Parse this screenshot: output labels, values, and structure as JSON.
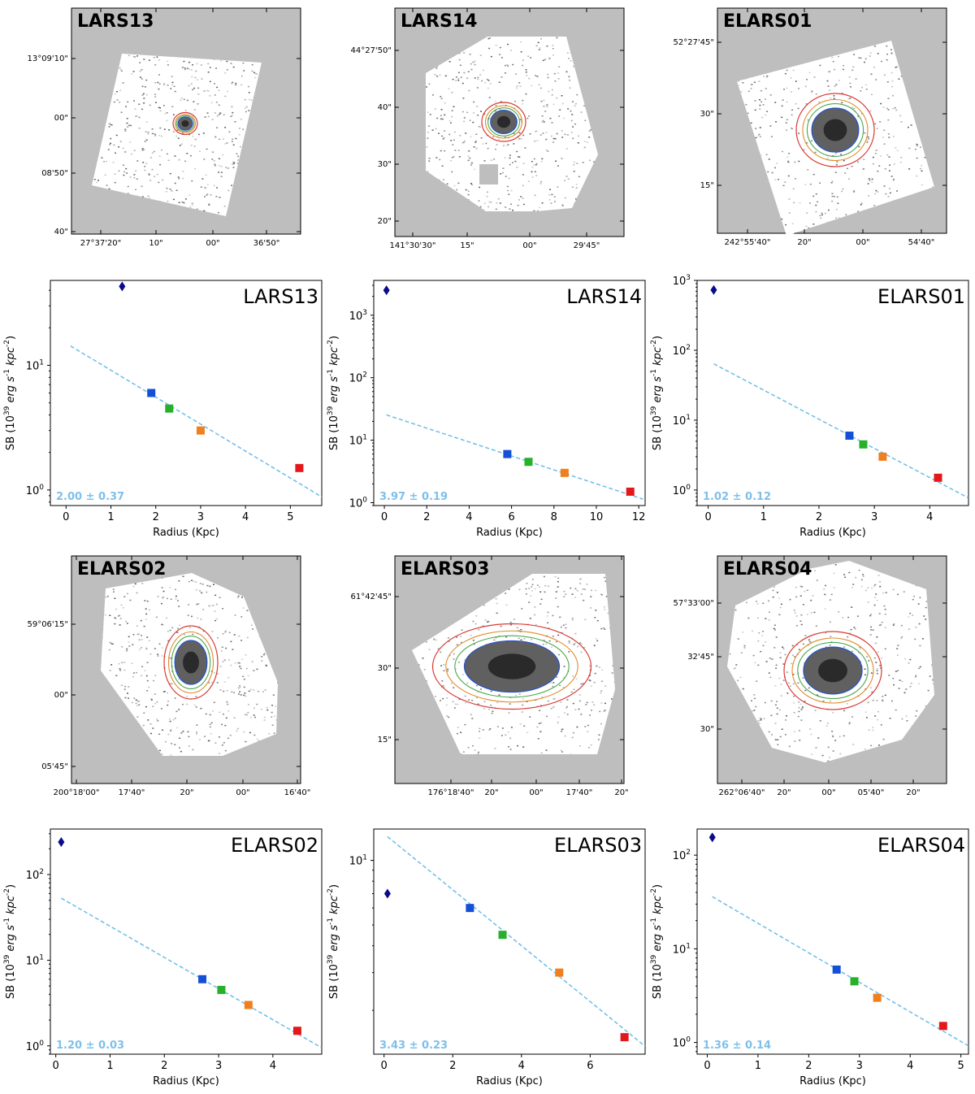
{
  "colors": {
    "gray_bg": "#bebebe",
    "fit_line": "#6bbde8",
    "slope_text": "#7ec0ea",
    "blue": "#1450d6",
    "green": "#27b02a",
    "orange": "#f07f1c",
    "red": "#e3181b",
    "diamond": "#0a0a8c",
    "contour_red": "#d83a34",
    "contour_orange": "#e08a2a",
    "contour_green": "#4aa84a",
    "contour_blue": "#2a55c8"
  },
  "images": [
    {
      "title": "LARS13",
      "yticks": [
        "13°09'10\"",
        "00\"",
        "08'50\"",
        "40\""
      ],
      "xticks": [
        "27°37'20\"",
        "10\"",
        "00\"",
        "36'50\""
      ]
    },
    {
      "title": "LARS14",
      "yticks": [
        "44°27'50\"",
        "40\"",
        "30\"",
        "20\""
      ],
      "xticks": [
        "141°30'30\"",
        "15\"",
        "00\"",
        "29'45\""
      ]
    },
    {
      "title": "ELARS01",
      "yticks": [
        "52°27'45\"",
        "30\"",
        "15\""
      ],
      "xticks": [
        "242°55'40\"",
        "20\"",
        "00\"",
        "54'40\""
      ]
    },
    {
      "title": "ELARS02",
      "yticks": [
        "59°06'15\"",
        "00\"",
        "05'45\""
      ],
      "xticks": [
        "200°18'00\"",
        "17'40\"",
        "20\"",
        "00\"",
        "16'40\""
      ]
    },
    {
      "title": "ELARS03",
      "yticks": [
        "61°42'45\"",
        "30\"",
        "15\""
      ],
      "xticks": [
        "176°18'40\"",
        "20\"",
        "00\"",
        "17'40\"",
        "20\""
      ]
    },
    {
      "title": "ELARS04",
      "yticks": [
        "57°33'00\"",
        "32'45\"",
        "30\""
      ],
      "xticks": [
        "262°06'40\"",
        "20\"",
        "00\"",
        "05'40\"",
        "20\""
      ]
    }
  ],
  "chart_data": [
    {
      "type": "scatter",
      "title": "LARS13",
      "xlabel": "Radius (Kpc)",
      "ylabel": "SB (10^39 erg s^-1 kpc^-2)",
      "xlim": [
        -0.35,
        5.7
      ],
      "ylim": [
        0.75,
        48
      ],
      "yscale": "log",
      "xticks": [
        "0",
        "1",
        "2",
        "3",
        "4",
        "5"
      ],
      "yticks": [
        "10^0",
        "10^1"
      ],
      "slope_text": "2.00 ± 0.37",
      "points": [
        {
          "x": 1.25,
          "y": 43,
          "marker": "diamond",
          "color": "diamond"
        },
        {
          "x": 1.9,
          "y": 6.0,
          "marker": "square",
          "color": "blue"
        },
        {
          "x": 2.3,
          "y": 4.5,
          "marker": "square",
          "color": "green"
        },
        {
          "x": 3.0,
          "y": 3.0,
          "marker": "square",
          "color": "orange"
        },
        {
          "x": 5.2,
          "y": 1.5,
          "marker": "square",
          "color": "red"
        }
      ],
      "fit": {
        "x": [
          0.1,
          5.7
        ],
        "y": [
          14.3,
          0.88
        ]
      }
    },
    {
      "type": "scatter",
      "title": "LARS14",
      "xlabel": "Radius (Kpc)",
      "ylabel": "SB (10^39 erg s^-1 kpc^-2)",
      "xlim": [
        -0.5,
        12.3
      ],
      "ylim": [
        0.9,
        3600
      ],
      "yscale": "log",
      "xticks": [
        "0",
        "2",
        "4",
        "6",
        "8",
        "10",
        "12"
      ],
      "yticks": [
        "10^0",
        "10^1",
        "10^2",
        "10^3"
      ],
      "slope_text": "3.97 ± 0.19",
      "points": [
        {
          "x": 0.1,
          "y": 2500,
          "marker": "diamond",
          "color": "diamond"
        },
        {
          "x": 5.8,
          "y": 6.0,
          "marker": "square",
          "color": "blue"
        },
        {
          "x": 6.8,
          "y": 4.5,
          "marker": "square",
          "color": "green"
        },
        {
          "x": 8.5,
          "y": 3.0,
          "marker": "square",
          "color": "orange"
        },
        {
          "x": 11.6,
          "y": 1.5,
          "marker": "square",
          "color": "red"
        }
      ],
      "fit": {
        "x": [
          0.1,
          12.2
        ],
        "y": [
          25.4,
          1.14
        ]
      }
    },
    {
      "type": "scatter",
      "title": "ELARS01",
      "xlabel": "Radius (Kpc)",
      "ylabel": "SB (10^39 erg s^-1 kpc^-2)",
      "xlim": [
        -0.2,
        4.7
      ],
      "ylim": [
        0.6,
        1000
      ],
      "yscale": "log",
      "xticks": [
        "0",
        "1",
        "2",
        "3",
        "4"
      ],
      "yticks": [
        "10^0",
        "10^1",
        "10^2",
        "10^3"
      ],
      "slope_text": "1.02 ± 0.12",
      "points": [
        {
          "x": 0.1,
          "y": 730,
          "marker": "diamond",
          "color": "diamond"
        },
        {
          "x": 2.55,
          "y": 6.0,
          "marker": "square",
          "color": "blue"
        },
        {
          "x": 2.8,
          "y": 4.5,
          "marker": "square",
          "color": "green"
        },
        {
          "x": 3.15,
          "y": 3.0,
          "marker": "square",
          "color": "orange"
        },
        {
          "x": 4.15,
          "y": 1.5,
          "marker": "square",
          "color": "red"
        }
      ],
      "fit": {
        "x": [
          0.1,
          4.7
        ],
        "y": [
          64,
          0.77
        ]
      }
    },
    {
      "type": "scatter",
      "title": "ELARS02",
      "xlabel": "Radius (Kpc)",
      "ylabel": "SB (10^39 erg s^-1 kpc^-2)",
      "xlim": [
        -0.1,
        4.9
      ],
      "ylim": [
        0.8,
        340
      ],
      "yscale": "log",
      "xticks": [
        "0",
        "1",
        "2",
        "3",
        "4"
      ],
      "yticks": [
        "10^0",
        "10^1",
        "10^2"
      ],
      "slope_text": "1.20 ± 0.03",
      "points": [
        {
          "x": 0.1,
          "y": 240,
          "marker": "diamond",
          "color": "diamond"
        },
        {
          "x": 2.7,
          "y": 6.0,
          "marker": "square",
          "color": "blue"
        },
        {
          "x": 3.05,
          "y": 4.5,
          "marker": "square",
          "color": "green"
        },
        {
          "x": 3.55,
          "y": 3.0,
          "marker": "square",
          "color": "orange"
        },
        {
          "x": 4.45,
          "y": 1.5,
          "marker": "square",
          "color": "red"
        }
      ],
      "fit": {
        "x": [
          0.1,
          4.9
        ],
        "y": [
          53,
          0.95
        ]
      }
    },
    {
      "type": "scatter",
      "title": "ELARS03",
      "xlabel": "Radius (Kpc)",
      "ylabel": "SB (10^39 erg s^-1 kpc^-2)",
      "xlim": [
        -0.3,
        7.6
      ],
      "ylim": [
        1.25,
        14
      ],
      "yscale": "log",
      "xticks": [
        "0",
        "2",
        "4",
        "6"
      ],
      "yticks": [
        "10^1"
      ],
      "slope_text": "3.43 ± 0.23",
      "points": [
        {
          "x": 0.1,
          "y": 7.0,
          "marker": "diamond",
          "color": "diamond"
        },
        {
          "x": 2.5,
          "y": 6.0,
          "marker": "square",
          "color": "blue"
        },
        {
          "x": 3.45,
          "y": 4.5,
          "marker": "square",
          "color": "green"
        },
        {
          "x": 5.1,
          "y": 3.0,
          "marker": "square",
          "color": "orange"
        },
        {
          "x": 7.0,
          "y": 1.5,
          "marker": "square",
          "color": "red"
        }
      ],
      "fit": {
        "x": [
          0.1,
          7.6
        ],
        "y": [
          12.9,
          1.36
        ]
      }
    },
    {
      "type": "scatter",
      "title": "ELARS04",
      "xlabel": "Radius (Kpc)",
      "ylabel": "SB (10^39 erg s^-1 kpc^-2)",
      "xlim": [
        -0.2,
        5.15
      ],
      "ylim": [
        0.75,
        190
      ],
      "yscale": "log",
      "xticks": [
        "0",
        "1",
        "2",
        "3",
        "4",
        "5"
      ],
      "yticks": [
        "10^0",
        "10^1",
        "10^2"
      ],
      "slope_text": "1.36 ± 0.14",
      "points": [
        {
          "x": 0.1,
          "y": 155,
          "marker": "diamond",
          "color": "diamond"
        },
        {
          "x": 2.55,
          "y": 6.0,
          "marker": "square",
          "color": "blue"
        },
        {
          "x": 2.9,
          "y": 4.5,
          "marker": "square",
          "color": "green"
        },
        {
          "x": 3.35,
          "y": 3.0,
          "marker": "square",
          "color": "orange"
        },
        {
          "x": 4.65,
          "y": 1.5,
          "marker": "square",
          "color": "red"
        }
      ],
      "fit": {
        "x": [
          0.1,
          5.15
        ],
        "y": [
          36,
          0.92
        ]
      }
    }
  ]
}
